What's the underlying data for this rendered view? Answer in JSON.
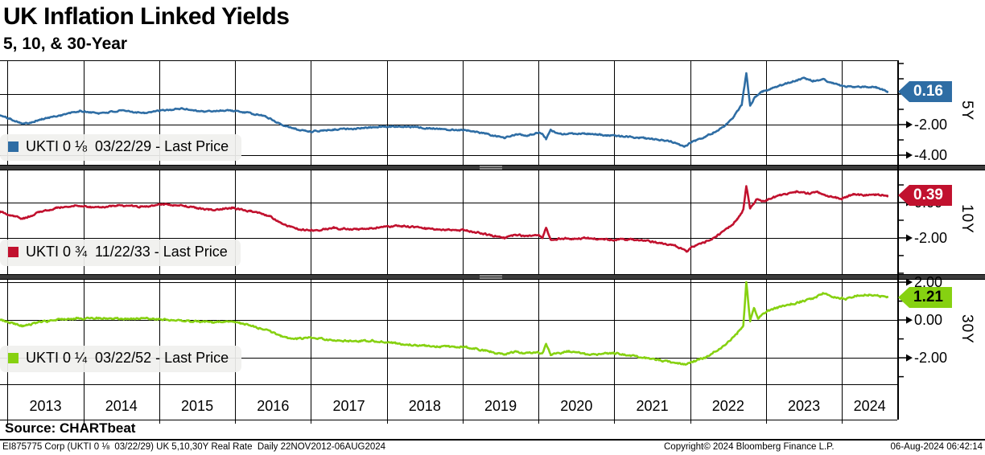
{
  "header": {
    "title": "UK Inflation Linked Yields",
    "subtitle": "5, 10, & 30-Year"
  },
  "chart_data": {
    "type": "line",
    "title": "UK Inflation Linked Yields",
    "subtitle": "5, 10, & 30-Year",
    "grid": "on",
    "x_axis": {
      "range": [
        2012.9,
        2024.73
      ],
      "years": [
        2013,
        2014,
        2015,
        2016,
        2017,
        2018,
        2019,
        2020,
        2021,
        2022,
        2023,
        2024
      ],
      "period": "Daily 22NOV2012-06AUG2024"
    },
    "panels": [
      {
        "id": "5y",
        "axis_title": "5Y",
        "legend": "UKTI 0 ⅛  03/22/29 - Last Price",
        "last_price": "0.16",
        "last_value": 0.16,
        "color": "#2e6da4",
        "flag_text_color": "#ffffff",
        "ylim": [
          -4.63,
          2.21
        ],
        "yticks_major": [
          {
            "value": 0,
            "label": "0.00"
          },
          {
            "value": -2,
            "label": "-2.00"
          },
          {
            "value": -4,
            "label": "-4.00"
          }
        ],
        "minor_tick_step": 1,
        "series": {
          "x": [
            2012.9,
            2013.03,
            2013.22,
            2013.45,
            2013.7,
            2013.95,
            2014.2,
            2014.5,
            2014.8,
            2015.05,
            2015.3,
            2015.6,
            2015.9,
            2016.15,
            2016.4,
            2016.55,
            2016.78,
            2017.0,
            2017.3,
            2017.6,
            2017.9,
            2018.2,
            2018.5,
            2018.8,
            2019.05,
            2019.3,
            2019.55,
            2019.7,
            2019.85,
            2020.0,
            2020.05,
            2020.1,
            2020.16,
            2020.3,
            2020.6,
            2020.9,
            2021.2,
            2021.5,
            2021.75,
            2021.92,
            2022.02,
            2022.15,
            2022.3,
            2022.45,
            2022.58,
            2022.68,
            2022.74,
            2022.79,
            2022.86,
            2022.95,
            2023.05,
            2023.2,
            2023.35,
            2023.5,
            2023.62,
            2023.75,
            2023.88,
            2024.0,
            2024.15,
            2024.3,
            2024.45,
            2024.6
          ],
          "y": [
            -1.4,
            -1.62,
            -1.95,
            -1.65,
            -1.38,
            -1.12,
            -1.25,
            -1.1,
            -1.22,
            -1.08,
            -0.95,
            -1.15,
            -1.05,
            -1.22,
            -1.45,
            -1.85,
            -2.28,
            -2.45,
            -2.32,
            -2.25,
            -2.15,
            -2.1,
            -2.22,
            -2.32,
            -2.35,
            -2.6,
            -2.88,
            -2.62,
            -2.72,
            -2.55,
            -2.62,
            -2.95,
            -2.38,
            -2.62,
            -2.58,
            -2.7,
            -2.8,
            -2.95,
            -3.1,
            -3.45,
            -3.15,
            -2.9,
            -2.55,
            -2.1,
            -1.45,
            -0.7,
            1.35,
            -0.75,
            -0.15,
            0.15,
            0.35,
            0.6,
            0.8,
            1.05,
            0.85,
            0.95,
            0.7,
            0.55,
            0.42,
            0.5,
            0.45,
            0.16
          ]
        }
      },
      {
        "id": "10y",
        "axis_title": "10Y",
        "legend": "UKTI 0 ¾  11/22/33 - Last Price",
        "last_price": "0.39",
        "last_value": 0.39,
        "color": "#c1112e",
        "flag_text_color": "#ffffff",
        "ylim": [
          -4.05,
          1.82
        ],
        "yticks_major": [
          {
            "value": 0,
            "label": "0.00"
          },
          {
            "value": -2,
            "label": "-2.00"
          }
        ],
        "minor_tick_step": 1,
        "series": {
          "x": [
            2012.9,
            2013.03,
            2013.2,
            2013.42,
            2013.65,
            2013.9,
            2014.15,
            2014.45,
            2014.75,
            2015.05,
            2015.35,
            2015.65,
            2015.95,
            2016.2,
            2016.45,
            2016.6,
            2016.8,
            2017.0,
            2017.3,
            2017.6,
            2017.9,
            2018.2,
            2018.5,
            2018.8,
            2019.05,
            2019.3,
            2019.55,
            2019.7,
            2019.85,
            2020.0,
            2020.05,
            2020.1,
            2020.16,
            2020.35,
            2020.65,
            2020.95,
            2021.25,
            2021.55,
            2021.8,
            2021.95,
            2022.05,
            2022.2,
            2022.35,
            2022.5,
            2022.62,
            2022.7,
            2022.74,
            2022.79,
            2022.87,
            2022.97,
            2023.1,
            2023.25,
            2023.4,
            2023.55,
            2023.7,
            2023.85,
            2024.0,
            2024.15,
            2024.3,
            2024.45,
            2024.6
          ],
          "y": [
            -0.5,
            -0.72,
            -0.92,
            -0.55,
            -0.3,
            -0.15,
            -0.3,
            -0.15,
            -0.25,
            -0.1,
            -0.2,
            -0.42,
            -0.3,
            -0.48,
            -0.75,
            -1.18,
            -1.48,
            -1.58,
            -1.45,
            -1.52,
            -1.4,
            -1.32,
            -1.45,
            -1.55,
            -1.58,
            -1.78,
            -2.0,
            -1.82,
            -1.92,
            -1.88,
            -2.02,
            -1.45,
            -2.08,
            -2.02,
            -2.02,
            -2.1,
            -2.08,
            -2.25,
            -2.45,
            -2.75,
            -2.45,
            -2.25,
            -1.9,
            -1.45,
            -0.95,
            -0.4,
            0.95,
            -0.35,
            0.18,
            0.05,
            0.32,
            0.48,
            0.62,
            0.52,
            0.58,
            0.32,
            0.22,
            0.48,
            0.42,
            0.45,
            0.39
          ]
        }
      },
      {
        "id": "30y",
        "axis_title": "30Y",
        "legend": "UKTI 0 ¼  03/22/52 - Last Price",
        "last_price": "1.21",
        "last_value": 1.21,
        "color": "#86d111",
        "flag_text_color": "#000000",
        "ylim": [
          -3.4,
          2.13
        ],
        "yticks_major": [
          {
            "value": 2,
            "label": "2.00"
          },
          {
            "value": 0,
            "label": "0.00"
          },
          {
            "value": -2,
            "label": "-2.00"
          }
        ],
        "minor_tick_step": 1,
        "series": {
          "x": [
            2012.9,
            2013.03,
            2013.2,
            2013.42,
            2013.65,
            2013.9,
            2014.2,
            2014.5,
            2014.8,
            2015.1,
            2015.4,
            2015.7,
            2015.95,
            2016.2,
            2016.45,
            2016.6,
            2016.8,
            2017.0,
            2017.25,
            2017.5,
            2017.8,
            2018.1,
            2018.4,
            2018.7,
            2019.05,
            2019.3,
            2019.55,
            2019.7,
            2019.85,
            2020.0,
            2020.05,
            2020.1,
            2020.16,
            2020.4,
            2020.7,
            2021.0,
            2021.3,
            2021.6,
            2021.85,
            2021.95,
            2022.05,
            2022.2,
            2022.35,
            2022.5,
            2022.62,
            2022.7,
            2022.74,
            2022.79,
            2022.84,
            2022.9,
            2023.0,
            2023.15,
            2023.3,
            2023.45,
            2023.6,
            2023.75,
            2023.9,
            2024.05,
            2024.2,
            2024.35,
            2024.5,
            2024.6
          ],
          "y": [
            0.0,
            -0.12,
            -0.32,
            -0.12,
            0.02,
            0.08,
            0.12,
            0.05,
            0.08,
            0.02,
            -0.05,
            -0.12,
            -0.08,
            -0.28,
            -0.58,
            -0.88,
            -1.0,
            -0.92,
            -1.05,
            -1.12,
            -1.1,
            -1.22,
            -1.35,
            -1.4,
            -1.42,
            -1.62,
            -1.85,
            -1.68,
            -1.78,
            -1.72,
            -1.82,
            -1.28,
            -1.85,
            -1.65,
            -1.85,
            -1.75,
            -1.95,
            -2.12,
            -2.32,
            -2.35,
            -2.18,
            -1.98,
            -1.6,
            -1.18,
            -0.72,
            -0.28,
            2.0,
            -0.05,
            0.65,
            0.08,
            0.45,
            0.65,
            0.82,
            0.95,
            1.12,
            1.38,
            1.18,
            1.12,
            1.3,
            1.35,
            1.26,
            1.21
          ]
        }
      }
    ]
  },
  "footer": {
    "source": "Source: CHARTbeat",
    "left": "EI875775 Corp (UKTI 0 ⅛  03/22/29) UK 5,10,30Y Real Rate  Daily 22NOV2012-06AUG2024",
    "center": "Copyright© 2024 Bloomberg Finance L.P.",
    "right": "06-Aug-2024 06:42:14"
  }
}
